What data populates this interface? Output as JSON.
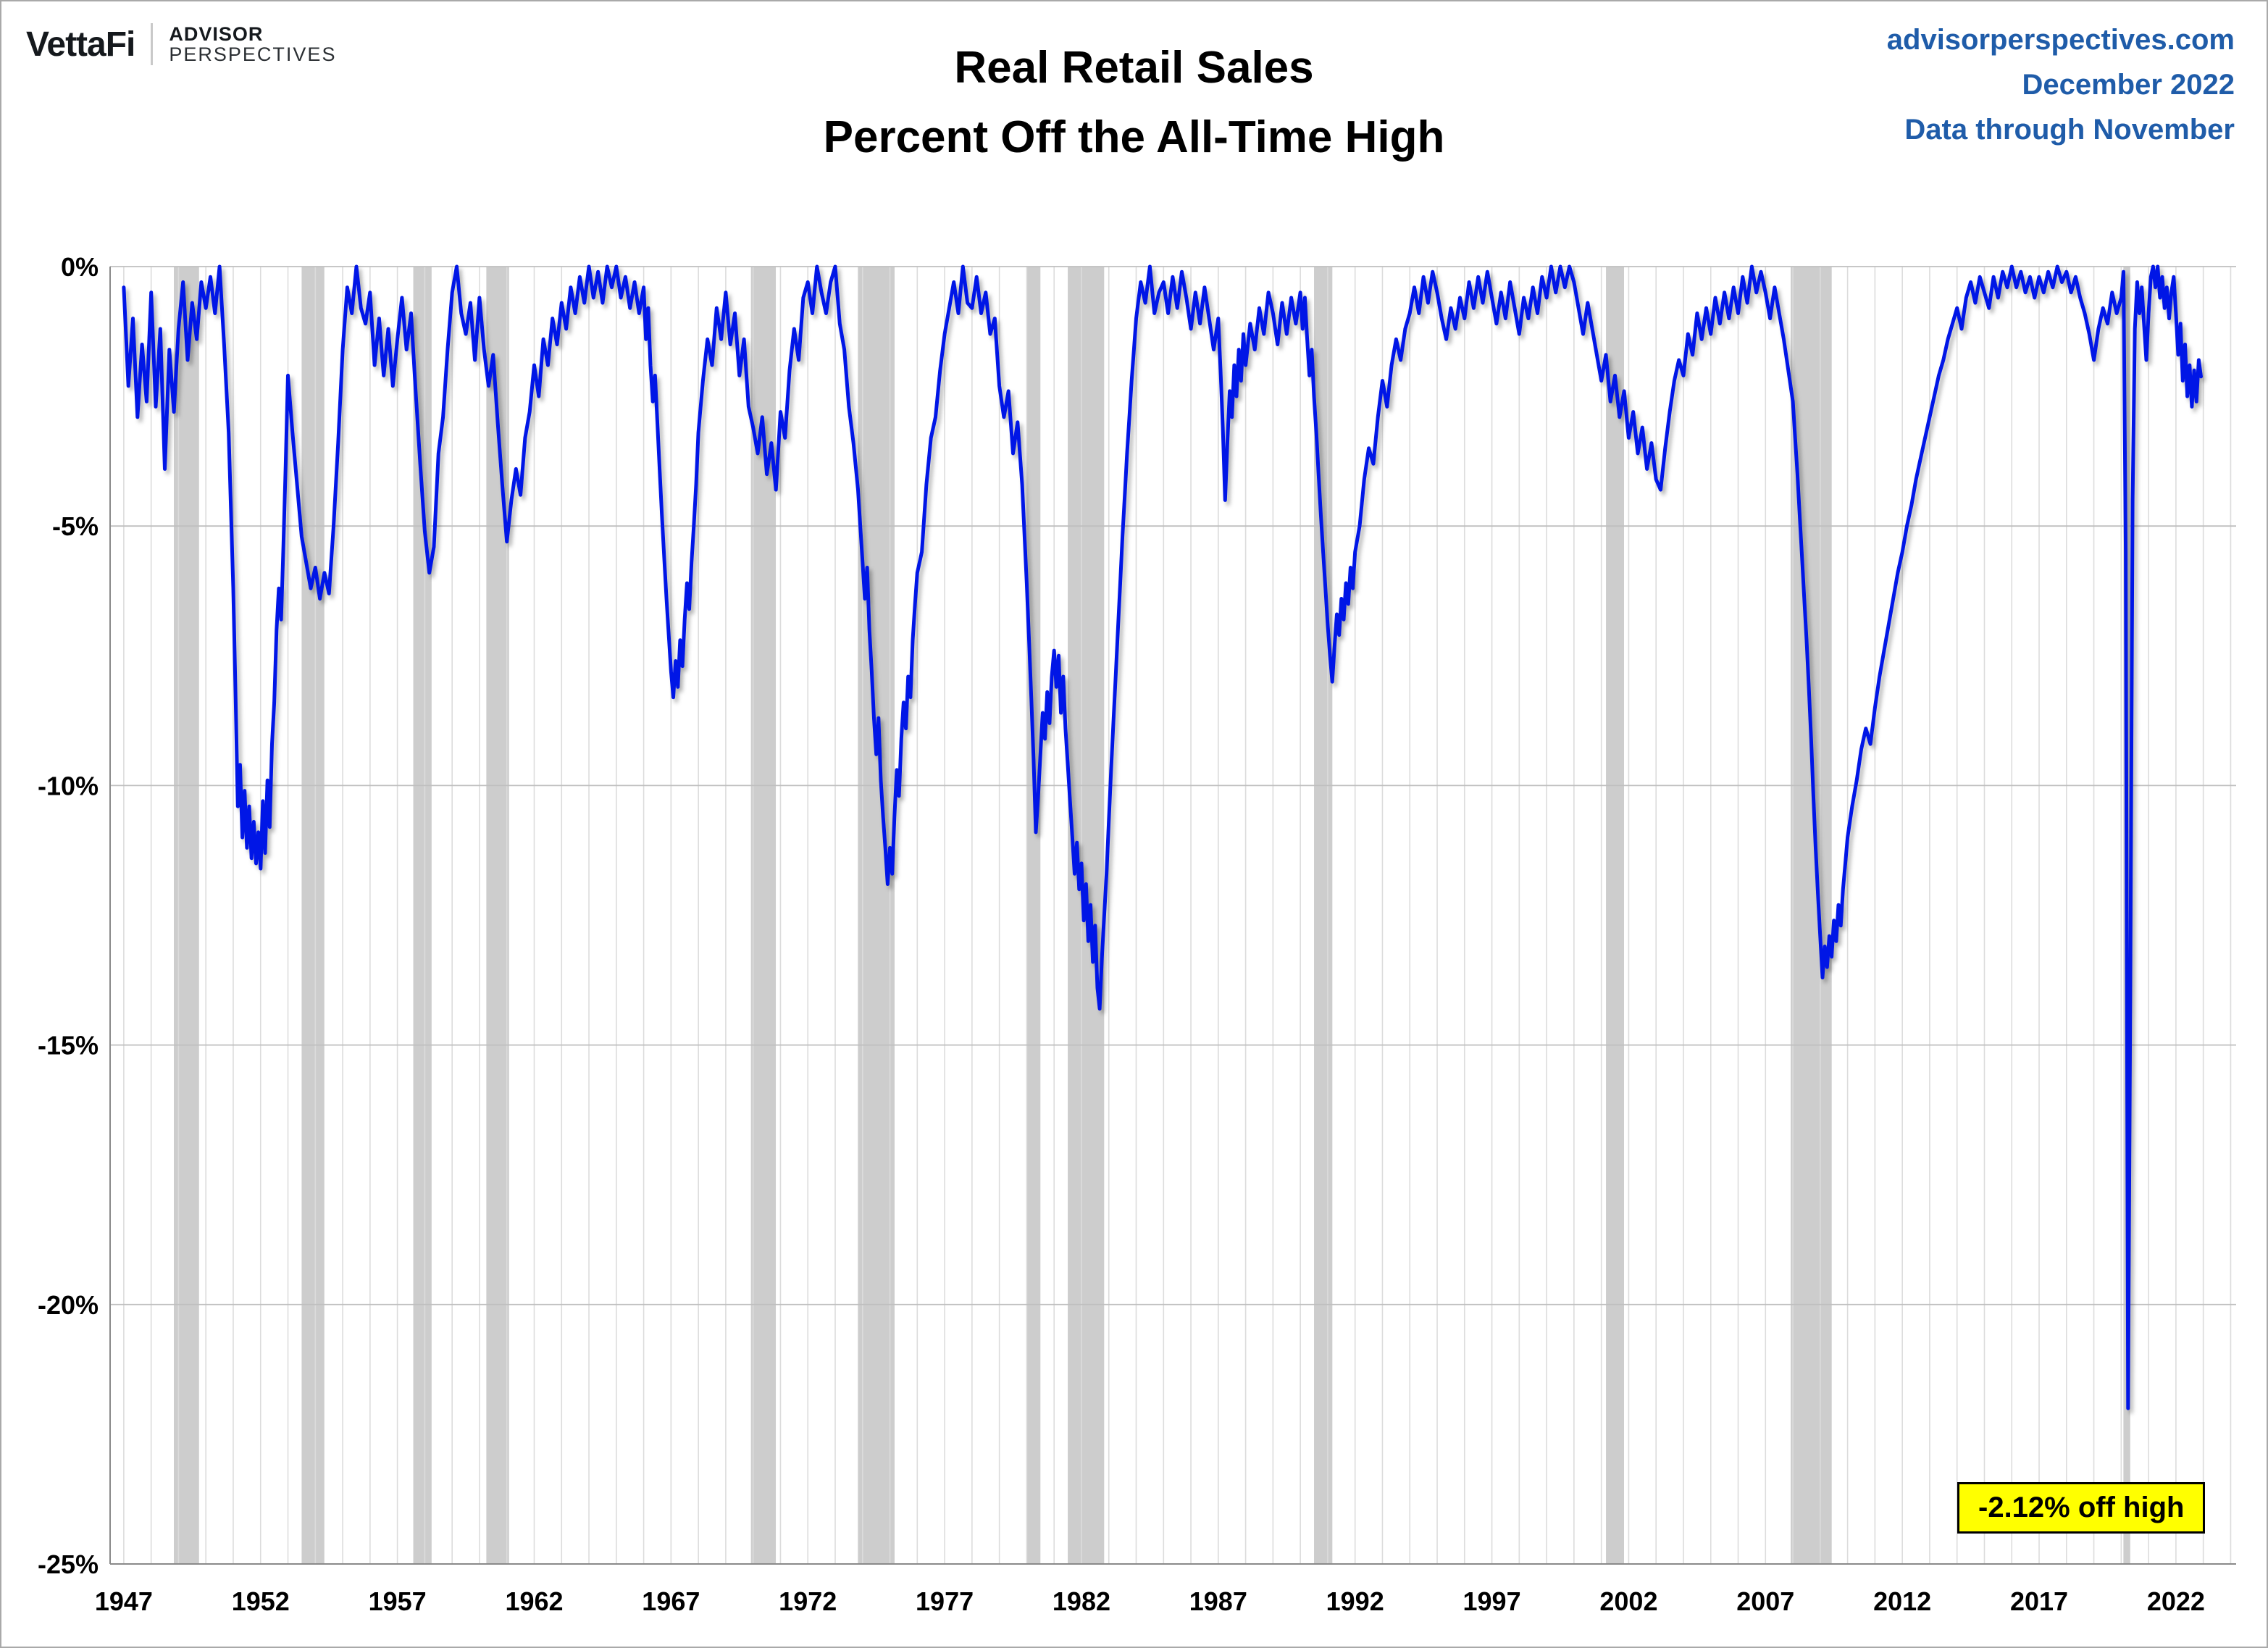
{
  "header": {
    "logo": {
      "brand": "VettaFi",
      "sub_top": "ADVISOR",
      "sub_bottom": "PERSPECTIVES"
    },
    "title_line1": "Real Retail Sales",
    "title_line2": "Percent Off the All-Time High",
    "source_site": "advisorperspectives.com",
    "source_date": "December 2022",
    "source_through": "Data through November"
  },
  "annotation": {
    "label": "-2.12% off high"
  },
  "colors": {
    "line": "#0014E6",
    "recession_band": "#cdcdcd",
    "grid_vertical": "#dcdcdc",
    "grid_horizontal": "#bfbfbf",
    "axis": "#8a8a8a",
    "tick_text": "#000000",
    "source_text": "#1f5ca9",
    "annotation_bg": "#ffff00"
  },
  "chart_data": {
    "type": "line",
    "title": "Real Retail Sales — Percent Off the All-Time High",
    "xlabel": "",
    "ylabel": "Percent off all-time high",
    "xlim": [
      1946.5,
      2024.2
    ],
    "ylim": [
      -25,
      0
    ],
    "x_ticks": [
      1947,
      1952,
      1957,
      1962,
      1967,
      1972,
      1977,
      1982,
      1987,
      1992,
      1997,
      2002,
      2007,
      2012,
      2017,
      2022
    ],
    "y_ticks": [
      {
        "v": 0,
        "label": "0%"
      },
      {
        "v": -5,
        "label": "-5%"
      },
      {
        "v": -10,
        "label": "-10%"
      },
      {
        "v": -15,
        "label": "-15%"
      },
      {
        "v": -20,
        "label": "-20%"
      },
      {
        "v": -25,
        "label": "-25%"
      }
    ],
    "grid": true,
    "legend": "none",
    "series_name": "Real retail sales % off all-time high",
    "point_rule": "x = year + index/count for each year's value array",
    "values_by_year": {
      "1947": [
        -0.4,
        -2.3,
        -1.0,
        -2.9,
        -1.5,
        -2.6
      ],
      "1948": [
        -0.5,
        -2.7,
        -1.2,
        -3.9,
        -1.6,
        -2.8
      ],
      "1949": [
        -1.2,
        -0.3,
        -1.8,
        -0.7,
        -1.4,
        -0.3
      ],
      "1950": [
        -0.8,
        -0.2,
        -0.9,
        0.0,
        -1.5,
        -3.2
      ],
      "1951": [
        -6.2,
        -8.2,
        -10.4,
        -9.6,
        -11.0,
        -10.1,
        -11.2,
        -10.4,
        -11.4,
        -10.7,
        -11.5,
        -10.9
      ],
      "1952": [
        -11.6,
        -10.3,
        -11.3,
        -9.9,
        -10.8,
        -9.2,
        -8.4,
        -7.0,
        -6.2,
        -6.8,
        -5.4,
        -3.8
      ],
      "1953": [
        -2.1,
        -3.2,
        -4.2,
        -5.2,
        -5.7,
        -6.2
      ],
      "1954": [
        -5.8,
        -6.4,
        -5.9,
        -6.3,
        -5.0,
        -3.4
      ],
      "1955": [
        -1.6,
        -0.4,
        -0.9,
        0.0,
        -0.8,
        -1.1
      ],
      "1956": [
        -0.5,
        -1.9,
        -1.0,
        -2.1,
        -1.2,
        -2.3
      ],
      "1957": [
        -1.4,
        -0.6,
        -1.6,
        -0.9,
        -2.4,
        -3.8
      ],
      "1958": [
        -5.1,
        -5.9,
        -5.4,
        -3.6,
        -2.9,
        -1.6
      ],
      "1959": [
        -0.5,
        0.0,
        -0.9,
        -1.3,
        -0.7,
        -1.8
      ],
      "1960": [
        -0.6,
        -1.6,
        -2.3,
        -1.7,
        -3.0,
        -4.2
      ],
      "1961": [
        -5.3,
        -4.5,
        -3.9,
        -4.4,
        -3.3,
        -2.8
      ],
      "1962": [
        -1.9,
        -2.5,
        -1.4,
        -1.9,
        -1.0,
        -1.5
      ],
      "1963": [
        -0.7,
        -1.2,
        -0.4,
        -0.9,
        -0.2,
        -0.7
      ],
      "1964": [
        0.0,
        -0.6,
        -0.1,
        -0.7,
        0.0,
        -0.4
      ],
      "1965": [
        0.0,
        -0.6,
        -0.2,
        -0.8,
        -0.3,
        -0.9
      ],
      "1966": [
        -0.4,
        -1.4,
        -0.8,
        -1.9,
        -2.6,
        -2.1,
        -3.0,
        -3.9,
        -4.8,
        -5.6,
        -6.4,
        -7.1
      ],
      "1967": [
        -7.8,
        -8.3,
        -7.6,
        -8.1,
        -7.2,
        -7.7,
        -6.8,
        -6.1,
        -6.6,
        -5.7,
        -5.0,
        -4.2
      ],
      "1968": [
        -3.2,
        -2.2,
        -1.4,
        -1.9,
        -0.8,
        -1.4
      ],
      "1969": [
        -0.5,
        -1.5,
        -0.9,
        -2.1,
        -1.4,
        -2.7
      ],
      "1970": [
        -3.1,
        -3.6,
        -2.9,
        -4.0,
        -3.4,
        -4.3
      ],
      "1971": [
        -2.8,
        -3.3,
        -2.0,
        -1.2,
        -1.8,
        -0.6
      ],
      "1972": [
        -0.3,
        -0.9,
        0.0,
        -0.5,
        -0.9,
        -0.3
      ],
      "1973": [
        0.0,
        -1.1,
        -1.6,
        -2.7,
        -3.4,
        -4.3
      ],
      "1974": [
        -5.7,
        -6.4,
        -5.8,
        -7.0,
        -7.8,
        -8.7,
        -9.4,
        -8.7,
        -9.9,
        -10.6,
        -11.2,
        -11.9
      ],
      "1975": [
        -11.2,
        -11.7,
        -10.6,
        -9.7,
        -10.2,
        -9.1,
        -8.4,
        -8.9,
        -7.9,
        -8.3,
        -7.2,
        -6.5
      ],
      "1976": [
        -5.9,
        -5.5,
        -4.2,
        -3.3,
        -2.9,
        -2.0
      ],
      "1977": [
        -1.3,
        -0.8,
        -0.3,
        -0.9,
        0.0,
        -0.7
      ],
      "1978": [
        -0.8,
        -0.2,
        -0.9,
        -0.5,
        -1.3,
        -1.0
      ],
      "1979": [
        -2.3,
        -2.9,
        -2.4,
        -3.6,
        -3.0,
        -4.2
      ],
      "1980": [
        -6.1,
        -7.2,
        -8.3,
        -9.5,
        -10.9,
        -10.2,
        -9.4,
        -8.6,
        -9.1,
        -8.2,
        -8.8,
        -7.9
      ],
      "1981": [
        -7.4,
        -8.1,
        -7.5,
        -8.6,
        -7.9,
        -8.9,
        -9.6,
        -10.3,
        -11.0,
        -11.7,
        -11.1,
        -12.0
      ],
      "1982": [
        -11.5,
        -12.6,
        -11.9,
        -13.0,
        -12.3,
        -13.4,
        -12.7,
        -13.9,
        -14.3,
        -13.3,
        -12.5,
        -11.7
      ],
      "1983": [
        -10.7,
        -9.7,
        -8.8,
        -7.9,
        -7.0,
        -6.1,
        -5.2,
        -4.4,
        -3.6,
        -2.9,
        -2.2,
        -1.6
      ],
      "1984": [
        -1.0,
        -0.3,
        -0.7,
        0.0,
        -0.9,
        -0.5
      ],
      "1985": [
        -0.3,
        -0.9,
        -0.2,
        -0.8,
        -0.1,
        -0.6
      ],
      "1986": [
        -1.2,
        -0.5,
        -1.1,
        -0.4,
        -1.0,
        -1.6
      ],
      "1987": [
        -1.0,
        -2.0,
        -3.1,
        -4.5,
        -3.4,
        -2.4,
        -2.9,
        -1.9,
        -2.5,
        -1.6,
        -2.2,
        -1.3
      ],
      "1988": [
        -1.9,
        -1.1,
        -1.6,
        -0.8,
        -1.3,
        -0.5
      ],
      "1989": [
        -0.9,
        -1.5,
        -0.7,
        -1.3,
        -0.6,
        -1.1
      ],
      "1990": [
        -0.5,
        -1.2,
        -0.6,
        -1.4,
        -2.1,
        -1.6,
        -2.5,
        -3.2,
        -4.0,
        -4.8,
        -5.5,
        -6.2
      ],
      "1991": [
        -6.9,
        -7.5,
        -8.0,
        -7.3,
        -6.7,
        -7.1,
        -6.4,
        -6.8,
        -6.1,
        -6.5,
        -5.8,
        -6.2
      ],
      "1992": [
        -5.5,
        -5.0,
        -4.1,
        -3.5,
        -3.8,
        -2.9
      ],
      "1993": [
        -2.2,
        -2.7,
        -1.9,
        -1.4,
        -1.8,
        -1.2
      ],
      "1994": [
        -0.9,
        -0.4,
        -0.9,
        -0.2,
        -0.7,
        -0.1
      ],
      "1995": [
        -0.5,
        -1.0,
        -1.4,
        -0.8,
        -1.2,
        -0.6
      ],
      "1996": [
        -1.0,
        -0.3,
        -0.8,
        -0.2,
        -0.7,
        -0.1
      ],
      "1997": [
        -0.6,
        -1.1,
        -0.5,
        -1.0,
        -0.3,
        -0.8
      ],
      "1998": [
        -1.3,
        -0.6,
        -1.0,
        -0.4,
        -0.9,
        -0.2
      ],
      "1999": [
        -0.6,
        0.0,
        -0.5,
        0.0,
        -0.4,
        0.0
      ],
      "2000": [
        -0.3,
        -0.8,
        -1.3,
        -0.7,
        -1.2,
        -1.7
      ],
      "2001": [
        -2.2,
        -1.7,
        -2.6,
        -2.1,
        -2.9,
        -2.4
      ],
      "2002": [
        -3.3,
        -2.8,
        -3.6,
        -3.1,
        -3.9,
        -3.4
      ],
      "2003": [
        -4.1,
        -4.3,
        -3.5,
        -2.8,
        -2.2,
        -1.8
      ],
      "2004": [
        -2.1,
        -1.3,
        -1.7,
        -0.9,
        -1.4,
        -0.8
      ],
      "2005": [
        -1.3,
        -0.6,
        -1.1,
        -0.5,
        -1.0,
        -0.4
      ],
      "2006": [
        -0.9,
        -0.2,
        -0.7,
        0.0,
        -0.5,
        -0.1
      ],
      "2007": [
        -0.5,
        -1.0,
        -0.4,
        -0.9,
        -1.4,
        -2.0
      ],
      "2008": [
        -2.6,
        -3.3,
        -4.0,
        -4.8,
        -5.6,
        -6.4,
        -7.2,
        -8.1,
        -9.1,
        -10.2,
        -11.2,
        -12.1
      ],
      "2009": [
        -12.9,
        -13.7,
        -13.1,
        -13.5,
        -12.9,
        -13.3,
        -12.6,
        -13.0,
        -12.3,
        -12.7,
        -12.0,
        -11.5
      ],
      "2010": [
        -11.0,
        -10.4,
        -9.9,
        -9.3,
        -8.9,
        -9.2
      ],
      "2011": [
        -8.5,
        -7.9,
        -7.4,
        -6.9,
        -6.4,
        -5.9
      ],
      "2012": [
        -5.5,
        -5.0,
        -4.6,
        -4.1,
        -3.7,
        -3.3
      ],
      "2013": [
        -2.9,
        -2.5,
        -2.1,
        -1.8,
        -1.4,
        -1.1
      ],
      "2014": [
        -0.8,
        -1.2,
        -0.6,
        -0.3,
        -0.7,
        -0.2
      ],
      "2015": [
        -0.5,
        -0.8,
        -0.2,
        -0.6,
        -0.1,
        -0.4
      ],
      "2016": [
        0.0,
        -0.4,
        -0.1,
        -0.5,
        -0.2,
        -0.6
      ],
      "2017": [
        -0.2,
        -0.5,
        -0.1,
        -0.4,
        0.0,
        -0.3
      ],
      "2018": [
        -0.1,
        -0.5,
        -0.2,
        -0.6,
        -0.9,
        -1.3
      ],
      "2019": [
        -1.8,
        -1.2,
        -0.8,
        -1.1,
        -0.5,
        -0.9
      ],
      "2020": [
        -0.6,
        -0.1,
        -5.5,
        -22.0,
        -14.0,
        -4.5,
        -1.2,
        -0.3,
        -0.9,
        -0.4,
        -1.1,
        -1.8
      ],
      "2021": [
        -0.9,
        -0.2,
        0.0,
        -0.4,
        0.0,
        -0.6,
        -0.2,
        -0.8,
        -0.4,
        -1.0,
        -0.5,
        -0.2
      ],
      "2022": [
        -0.9,
        -1.7,
        -1.1,
        -2.2,
        -1.5,
        -2.5,
        -1.9,
        -2.7,
        -2.0,
        -2.6,
        -1.8,
        -2.12
      ]
    },
    "recessions": [
      [
        1948.83,
        1949.75
      ],
      [
        1953.5,
        1954.33
      ],
      [
        1957.58,
        1958.25
      ],
      [
        1960.25,
        1961.08
      ],
      [
        1969.92,
        1970.83
      ],
      [
        1973.83,
        1975.17
      ],
      [
        1980.0,
        1980.5
      ],
      [
        1981.5,
        1982.83
      ],
      [
        1990.5,
        1991.17
      ],
      [
        2001.17,
        2001.83
      ],
      [
        2007.92,
        2009.42
      ],
      [
        2020.08,
        2020.33
      ]
    ],
    "last_value_label": "-2.12% off high"
  }
}
